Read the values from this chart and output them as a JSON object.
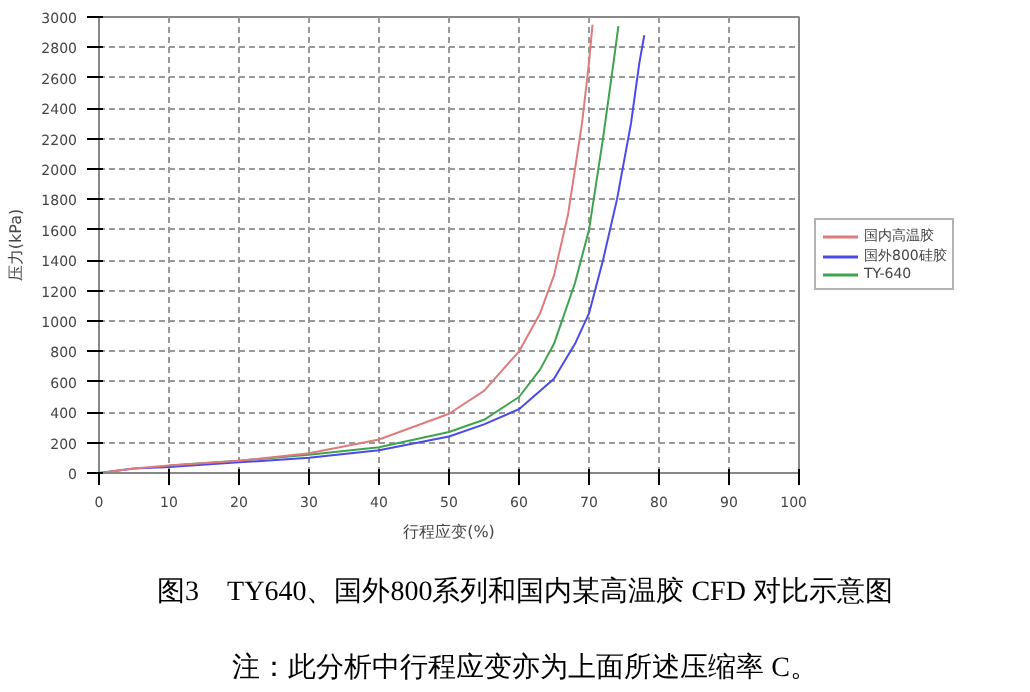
{
  "chart_data": {
    "type": "line",
    "xlabel": "行程应变(%)",
    "ylabel": "压力(kPa)",
    "xlim": [
      0,
      100
    ],
    "xticks": [
      0,
      10,
      20,
      30,
      40,
      50,
      60,
      70,
      80,
      90,
      100
    ],
    "ylim": [
      0,
      3000
    ],
    "yticks": [
      0,
      200,
      400,
      600,
      800,
      1000,
      1200,
      1400,
      1600,
      1800,
      2000,
      2200,
      2400,
      2600,
      2800,
      3000
    ],
    "grid": true,
    "legend": "right",
    "marker": "none",
    "line_style": "solid",
    "series": [
      {
        "name": "国内高温胶",
        "color": "#e07b7b",
        "x": [
          0,
          5,
          10,
          20,
          30,
          40,
          50,
          55,
          60,
          63,
          65,
          67,
          69,
          70,
          70.5
        ],
        "values": [
          0,
          30,
          50,
          80,
          130,
          220,
          390,
          540,
          800,
          1050,
          1300,
          1700,
          2300,
          2700,
          2950
        ]
      },
      {
        "name": "国外800硅胶",
        "color": "#4a4ae8",
        "x": [
          0,
          5,
          10,
          20,
          30,
          40,
          50,
          55,
          60,
          65,
          68,
          70,
          72,
          74,
          76,
          77.2,
          77.9
        ],
        "values": [
          0,
          30,
          40,
          70,
          100,
          150,
          240,
          320,
          420,
          620,
          850,
          1050,
          1400,
          1800,
          2300,
          2700,
          2880
        ]
      },
      {
        "name": "TY-640",
        "color": "#3fa34d",
        "x": [
          10,
          20,
          30,
          40,
          50,
          55,
          60,
          63,
          65,
          68,
          70,
          72,
          73.5,
          74.2
        ],
        "values": [
          50,
          80,
          120,
          170,
          270,
          350,
          500,
          680,
          850,
          1250,
          1600,
          2200,
          2700,
          2940
        ]
      }
    ],
    "annotations": [
      "图3　TY640、国外800系列和国内某高温胶 CFD 对比示意图",
      "注：此分析中行程应变亦为上面所述压缩率 C。"
    ]
  }
}
